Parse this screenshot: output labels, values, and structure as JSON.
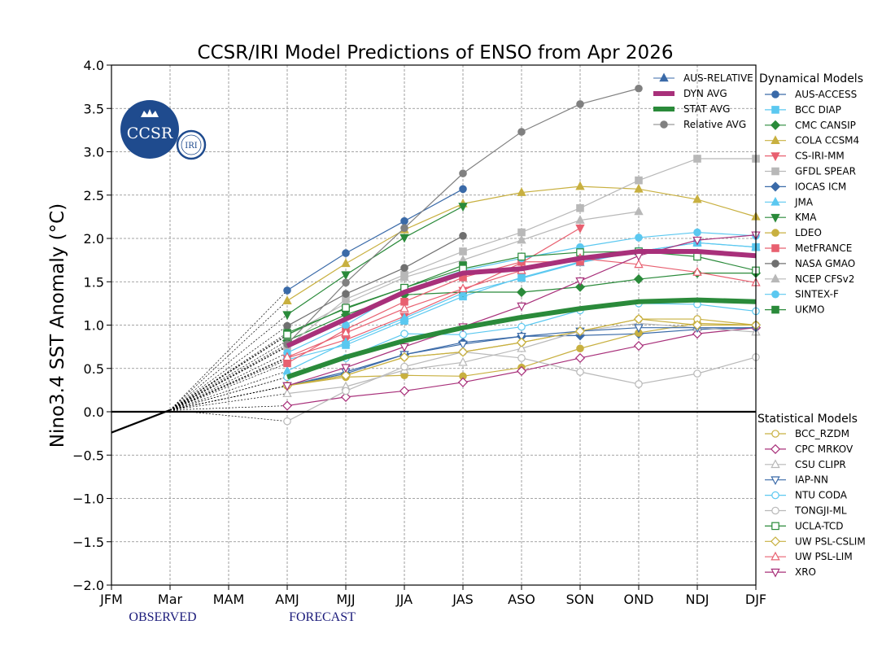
{
  "chart_data": {
    "type": "line",
    "title": "CCSR/IRI Model Predictions of ENSO from Apr 2026",
    "ylabel": "Nino3.4 SST Anomaly (°C)",
    "xlabel": "",
    "categories": [
      "JFM",
      "Mar",
      "MAM",
      "AMJ",
      "MJJ",
      "JJA",
      "JAS",
      "ASO",
      "SON",
      "OND",
      "NDJ",
      "DJF"
    ],
    "ylim": [
      -2.0,
      4.0
    ],
    "yticks": [
      "−2.0",
      "−1.5",
      "−1.0",
      "−0.5",
      "0.0",
      "0.5",
      "1.0",
      "1.5",
      "2.0",
      "2.5",
      "3.0",
      "3.5",
      "4.0"
    ],
    "grid": true,
    "phase_labels": {
      "observed": "OBSERVED",
      "forecast": "FORECAST"
    },
    "logo": {
      "text": "CCSR",
      "badge": "IRI",
      "colors": {
        "primary": "#1f4b8e"
      }
    },
    "observed": {
      "x": [
        0,
        1
      ],
      "values": [
        -0.24,
        0.02
      ],
      "color": "#000000"
    },
    "zero_line": true,
    "legends": {
      "summary": [
        {
          "name": "AUS-RELATIVE",
          "color": "#3a6aa8",
          "marker": "triangle",
          "width": 1
        },
        {
          "name": "DYN AVG",
          "color": "#a8307a",
          "marker": "none",
          "width": 6
        },
        {
          "name": "STAT AVG",
          "color": "#2a8a3a",
          "marker": "none",
          "width": 6
        },
        {
          "name": "Relative AVG",
          "color": "#808080",
          "marker": "circle",
          "width": 1
        }
      ],
      "dynamical_title": "Dynamical Models",
      "statistical_title": "Statistical Models"
    },
    "series": [
      {
        "name": "AUS-ACCESS",
        "group": "dyn",
        "color": "#3a6aa8",
        "marker": "circle",
        "filled": true,
        "x": [
          3,
          4,
          5,
          6
        ],
        "values": [
          1.4,
          1.83,
          2.2,
          2.57
        ]
      },
      {
        "name": "BCC DIAP",
        "group": "dyn",
        "color": "#5bc8f0",
        "marker": "square",
        "filled": true,
        "x": [
          3,
          4,
          5,
          6,
          7,
          8,
          9,
          10,
          11
        ],
        "values": [
          0.6,
          0.77,
          1.05,
          1.33,
          1.55,
          1.73,
          1.85,
          1.95,
          1.9
        ]
      },
      {
        "name": "CMC CANSIP",
        "group": "dyn",
        "color": "#2a8a3a",
        "marker": "diamond",
        "filled": true,
        "x": [
          3,
          4,
          5,
          6,
          7,
          8,
          9,
          10,
          11
        ],
        "values": [
          0.82,
          1.12,
          1.35,
          1.38,
          1.38,
          1.44,
          1.53,
          1.6,
          1.6
        ]
      },
      {
        "name": "COLA CCSM4",
        "group": "dyn",
        "color": "#c8b040",
        "marker": "triangle",
        "filled": true,
        "x": [
          3,
          4,
          5,
          6,
          7,
          8,
          9,
          10,
          11
        ],
        "values": [
          1.28,
          1.71,
          2.1,
          2.4,
          2.53,
          2.6,
          2.57,
          2.45,
          2.25
        ]
      },
      {
        "name": "CS-IRI-MM",
        "group": "dyn",
        "color": "#e86070",
        "marker": "triangle-down",
        "filled": true,
        "x": [
          3,
          4,
          5,
          6,
          7,
          8
        ],
        "values": [
          0.62,
          0.83,
          1.1,
          1.4,
          1.72,
          2.12
        ]
      },
      {
        "name": "GFDL SPEAR",
        "group": "dyn",
        "color": "#b8b8b8",
        "marker": "square",
        "filled": true,
        "x": [
          3,
          4,
          5,
          6,
          7,
          8,
          9,
          10,
          11
        ],
        "values": [
          0.75,
          1.3,
          1.58,
          1.85,
          2.07,
          2.35,
          2.67,
          2.92,
          2.92
        ]
      },
      {
        "name": "IOCAS ICM",
        "group": "dyn",
        "color": "#3a6aa8",
        "marker": "diamond",
        "filled": true,
        "x": [
          3,
          4,
          5,
          6,
          7,
          8,
          9,
          10,
          11
        ],
        "values": [
          0.3,
          0.44,
          0.66,
          0.8,
          0.87,
          0.88,
          0.9,
          0.95,
          0.97
        ]
      },
      {
        "name": "JMA",
        "group": "dyn",
        "color": "#5bc8f0",
        "marker": "triangle",
        "filled": true,
        "x": [
          3,
          4,
          5,
          6,
          7,
          8,
          9,
          10,
          11
        ],
        "values": [
          0.47,
          0.8,
          1.08,
          1.37,
          1.54,
          1.72,
          1.85,
          1.95,
          1.9
        ]
      },
      {
        "name": "KMA",
        "group": "dyn",
        "color": "#2a8a3a",
        "marker": "triangle-down",
        "filled": true,
        "x": [
          3,
          4,
          5,
          6
        ],
        "values": [
          1.12,
          1.58,
          2.01,
          2.37
        ]
      },
      {
        "name": "LDEO",
        "group": "dyn",
        "color": "#c8b040",
        "marker": "circle",
        "filled": true,
        "x": [
          3,
          4,
          5,
          6,
          7,
          8,
          9,
          10,
          11
        ],
        "values": [
          0.3,
          0.4,
          0.42,
          0.41,
          0.51,
          0.73,
          0.91,
          1.02,
          1.0
        ]
      },
      {
        "name": "MetFRANCE",
        "group": "dyn",
        "color": "#e86070",
        "marker": "square",
        "filled": true,
        "x": [
          3,
          4,
          5,
          6,
          7,
          8
        ],
        "values": [
          0.56,
          0.95,
          1.27,
          1.55,
          1.73,
          1.73
        ]
      },
      {
        "name": "NASA GMAO",
        "group": "dyn",
        "color": "#707070",
        "marker": "circle",
        "filled": true,
        "x": [
          3,
          4,
          5,
          6
        ],
        "values": [
          0.99,
          1.36,
          1.66,
          2.03
        ]
      },
      {
        "name": "NCEP CFSv2",
        "group": "dyn",
        "color": "#b8b8b8",
        "marker": "triangle",
        "filled": true,
        "x": [
          3,
          4,
          5,
          6,
          7,
          8,
          9
        ],
        "values": [
          0.88,
          1.25,
          1.55,
          1.75,
          1.98,
          2.21,
          2.31
        ]
      },
      {
        "name": "SINTEX-F",
        "group": "dyn",
        "color": "#5bc8f0",
        "marker": "circle",
        "filled": true,
        "x": [
          3,
          4,
          5,
          6,
          7,
          8,
          9,
          10,
          11
        ],
        "values": [
          0.68,
          1.0,
          1.4,
          1.63,
          1.77,
          1.9,
          2.01,
          2.07,
          2.03
        ]
      },
      {
        "name": "UKMO",
        "group": "dyn",
        "color": "#2a8a3a",
        "marker": "square",
        "filled": true,
        "x": [
          3,
          4,
          5,
          6
        ],
        "values": [
          0.91,
          1.19,
          1.43,
          1.69
        ]
      },
      {
        "name": "BCC_RZDM",
        "group": "stat",
        "color": "#c8b040",
        "marker": "circle",
        "filled": false,
        "x": [
          3,
          4,
          5,
          6,
          7,
          8,
          9,
          10,
          11
        ],
        "values": [
          0.3,
          0.42,
          0.63,
          0.69,
          0.8,
          0.93,
          1.07,
          1.07,
          1.0
        ]
      },
      {
        "name": "CPC MRKOV",
        "group": "stat",
        "color": "#a8307a",
        "marker": "diamond",
        "filled": false,
        "x": [
          3,
          4,
          5,
          6,
          7,
          8,
          9,
          10,
          11
        ],
        "values": [
          0.07,
          0.17,
          0.24,
          0.34,
          0.47,
          0.62,
          0.76,
          0.9,
          0.97
        ]
      },
      {
        "name": "CSU CLIPR",
        "group": "stat",
        "color": "#b8b8b8",
        "marker": "triangle",
        "filled": false,
        "x": [
          3,
          4,
          5,
          6,
          7,
          8,
          9,
          10,
          11
        ],
        "values": [
          0.21,
          0.29,
          0.48,
          0.57,
          0.73,
          0.93,
          1.02,
          0.97,
          0.92
        ]
      },
      {
        "name": "IAP-NN",
        "group": "stat",
        "color": "#3a6aa8",
        "marker": "triangle-down",
        "filled": false,
        "x": [
          3,
          4,
          5,
          6,
          7,
          8,
          9,
          10,
          11
        ],
        "values": [
          0.3,
          0.46,
          0.66,
          0.78,
          0.87,
          0.93,
          0.97,
          0.97,
          0.97
        ]
      },
      {
        "name": "NTU CODA",
        "group": "stat",
        "color": "#5bc8f0",
        "marker": "circle",
        "filled": false,
        "x": [
          3,
          4,
          5,
          6,
          7,
          8,
          9,
          10,
          11
        ],
        "values": [
          0.4,
          0.62,
          0.9,
          0.89,
          0.98,
          1.17,
          1.25,
          1.24,
          1.16
        ]
      },
      {
        "name": "TONGJI-ML",
        "group": "stat",
        "color": "#b8b8b8",
        "marker": "circle",
        "filled": false,
        "x": [
          3,
          4,
          5,
          6,
          7,
          8,
          9,
          10,
          11
        ],
        "values": [
          -0.11,
          0.24,
          0.52,
          0.69,
          0.62,
          0.46,
          0.32,
          0.44,
          0.63
        ]
      },
      {
        "name": "UCLA-TCD",
        "group": "stat",
        "color": "#2a8a3a",
        "marker": "square",
        "filled": false,
        "x": [
          3,
          4,
          5,
          6,
          7,
          8,
          9,
          10,
          11
        ],
        "values": [
          0.89,
          1.2,
          1.43,
          1.65,
          1.79,
          1.84,
          1.85,
          1.79,
          1.63
        ]
      },
      {
        "name": "UW PSL-CSLIM",
        "group": "stat",
        "color": "#c8b040",
        "marker": "diamond",
        "filled": false,
        "x": [
          3,
          4,
          5,
          6,
          7,
          8,
          9,
          10,
          11
        ],
        "values": [
          0.3,
          0.42,
          0.63,
          0.69,
          0.8,
          0.93,
          1.07,
          1.0,
          1.0
        ]
      },
      {
        "name": "UW PSL-LIM",
        "group": "stat",
        "color": "#e86070",
        "marker": "triangle",
        "filled": false,
        "x": [
          3,
          4,
          5,
          6,
          7,
          8,
          9,
          10,
          11
        ],
        "values": [
          0.63,
          0.91,
          1.19,
          1.42,
          1.63,
          1.77,
          1.7,
          1.61,
          1.49
        ]
      },
      {
        "name": "XRO",
        "group": "stat",
        "color": "#a8307a",
        "marker": "triangle-down",
        "filled": false,
        "x": [
          3,
          4,
          5,
          6,
          7,
          8,
          9,
          10,
          11
        ],
        "values": [
          0.3,
          0.51,
          0.75,
          0.98,
          1.22,
          1.51,
          1.8,
          1.98,
          2.04
        ]
      },
      {
        "name": "AUS-RELATIVE",
        "group": "summary",
        "color": "#3a6aa8",
        "marker": "triangle",
        "filled": true,
        "x": [],
        "values": []
      },
      {
        "name": "Relative AVG",
        "group": "summary",
        "color": "#808080",
        "marker": "circle",
        "filled": true,
        "x": [
          3,
          4,
          5,
          6,
          7,
          8,
          9
        ],
        "values": [
          0.78,
          1.49,
          2.12,
          2.75,
          3.23,
          3.55,
          3.73
        ]
      },
      {
        "name": "DYN AVG",
        "group": "summary",
        "color": "#a8307a",
        "marker": "none",
        "filled": true,
        "width": 6,
        "x": [
          3,
          4,
          5,
          6,
          7,
          8,
          9,
          10,
          11
        ],
        "values": [
          0.76,
          1.07,
          1.38,
          1.6,
          1.65,
          1.77,
          1.85,
          1.85,
          1.8
        ]
      },
      {
        "name": "STAT AVG",
        "group": "summary",
        "color": "#2a8a3a",
        "marker": "none",
        "filled": true,
        "width": 6,
        "x": [
          3,
          4,
          5,
          6,
          7,
          8,
          9,
          10,
          11
        ],
        "values": [
          0.4,
          0.63,
          0.82,
          0.97,
          1.09,
          1.19,
          1.27,
          1.29,
          1.27
        ]
      }
    ]
  }
}
